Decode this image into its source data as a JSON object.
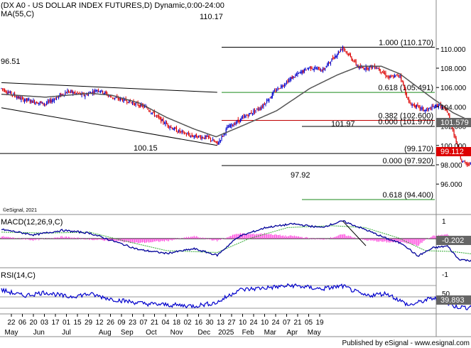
{
  "colors": {
    "background": "#ffffff",
    "candle_up": "#0000cc",
    "candle_down": "#dd0000",
    "moving_average": "#555555",
    "trendline": "#000000",
    "fib_black": "#000000",
    "fib_red": "#c00000",
    "fib_green": "#1a8a1a",
    "macd_line": "#000099",
    "signal_line": "#33aa33",
    "histogram": "#ff44dd",
    "rsi_line": "#0000cc",
    "rsi_levels": "#999999",
    "axis_text": "#000000",
    "price_tag_red": "#dd0000",
    "tag_gray": "#666666"
  },
  "header": {
    "title": "(DX A0 - US DOLLAR INDEX FUTURES,D) Dynamic,0:00-24:00",
    "ma_label": "MA(55,C)"
  },
  "watermark": "©eSignal, 2021",
  "footer": "Published by eSignal - www.esignal.com",
  "annotations": {
    "left_high": "96.51",
    "high": "110.17",
    "low_2024": "100.15",
    "low_2025": "97.92",
    "swing_high": "101.97"
  },
  "fib_levels": [
    {
      "label": "1.000 (110.170)",
      "value": 110.17,
      "color": "black"
    },
    {
      "label": "0.618 (105.491)",
      "value": 105.491,
      "color": "green"
    },
    {
      "label": "0.382 (102.600)",
      "value": 102.6,
      "color": "red"
    },
    {
      "label": "0.000 (101.970)",
      "value": 101.97,
      "color": "black"
    },
    {
      "label": "(99.170)",
      "value": 99.17,
      "color": "black"
    },
    {
      "label": "0.000 (97.920)",
      "value": 97.92,
      "color": "black"
    },
    {
      "label": "0.618 (94.400)",
      "value": 94.4,
      "color": "green"
    }
  ],
  "price_tags": {
    "last_close": "99.112",
    "ma_value": "101.579"
  },
  "macd": {
    "label": "MACD(12,26,9,C)",
    "value_tag": "-0.202",
    "axis": [
      "1",
      "0",
      "-1"
    ]
  },
  "rsi": {
    "label": "RSI(14,C)",
    "value_tag": "39.893",
    "axis": [
      "50"
    ]
  },
  "price_axis": [
    "110.000",
    "108.000",
    "106.000",
    "104.000",
    "102.000",
    "100.000",
    "98.000",
    "96.000"
  ],
  "time_axis": {
    "days": [
      "22",
      "06",
      "20",
      "03",
      "17",
      "01",
      "15",
      "29",
      "12",
      "26",
      "09",
      "23",
      "07",
      "21",
      "04",
      "18",
      "02",
      "16",
      "30",
      "13",
      "27",
      "10",
      "24",
      "10",
      "24",
      "07",
      "21",
      "05",
      "19"
    ],
    "months": [
      "May",
      "Jun",
      "Jul",
      "Aug",
      "Sep",
      "Oct",
      "Nov",
      "Dec",
      "2025",
      "Feb",
      "Mar",
      "Apr",
      "May"
    ]
  },
  "chart_data": {
    "type": "candlestick",
    "symbol": "DX A0",
    "interval": "D",
    "y_range": [
      95,
      110.7
    ],
    "price_anchors": [
      [
        0,
        105.9
      ],
      [
        18,
        104.8
      ],
      [
        40,
        104.3
      ],
      [
        60,
        105.6
      ],
      [
        75,
        105.2
      ],
      [
        88,
        105.8
      ],
      [
        100,
        105.0
      ],
      [
        115,
        104.6
      ],
      [
        132,
        103.9
      ],
      [
        145,
        102.6
      ],
      [
        158,
        101.6
      ],
      [
        172,
        101.0
      ],
      [
        188,
        100.8
      ],
      [
        196,
        100.15
      ],
      [
        205,
        101.8
      ],
      [
        220,
        102.9
      ],
      [
        236,
        104.0
      ],
      [
        250,
        105.8
      ],
      [
        265,
        107.1
      ],
      [
        280,
        108.1
      ],
      [
        292,
        107.8
      ],
      [
        300,
        108.9
      ],
      [
        310,
        110.17
      ],
      [
        325,
        108.0
      ],
      [
        340,
        108.2
      ],
      [
        352,
        107.0
      ],
      [
        362,
        107.3
      ],
      [
        370,
        104.4
      ],
      [
        385,
        103.6
      ],
      [
        397,
        104.2
      ],
      [
        405,
        103.5
      ],
      [
        411,
        101.2
      ],
      [
        418,
        98.4
      ],
      [
        424,
        97.92
      ],
      [
        432,
        99.6
      ],
      [
        440,
        100.2
      ],
      [
        447,
        101.3
      ],
      [
        453,
        100.5
      ],
      [
        458,
        99.7
      ],
      [
        462,
        99.11
      ]
    ],
    "ma55_anchors": [
      [
        0,
        105.3
      ],
      [
        40,
        105.0
      ],
      [
        80,
        105.4
      ],
      [
        100,
        105.2
      ],
      [
        125,
        104.4
      ],
      [
        150,
        102.9
      ],
      [
        175,
        101.7
      ],
      [
        195,
        100.9
      ],
      [
        220,
        102.1
      ],
      [
        250,
        103.6
      ],
      [
        280,
        105.9
      ],
      [
        305,
        107.3
      ],
      [
        325,
        108.2
      ],
      [
        345,
        108.2
      ],
      [
        362,
        107.4
      ],
      [
        390,
        105.0
      ],
      [
        410,
        103.4
      ],
      [
        430,
        102.3
      ],
      [
        450,
        101.8
      ],
      [
        462,
        101.58
      ]
    ],
    "trendlines": [
      {
        "from": [
          0,
          106.5
        ],
        "to": [
          196,
          105.5
        ]
      },
      {
        "from": [
          0,
          103.9
        ],
        "to": [
          196,
          100.0
        ]
      }
    ],
    "macd_value": -0.202,
    "rsi_value": 39.893,
    "last_close": 99.112
  }
}
